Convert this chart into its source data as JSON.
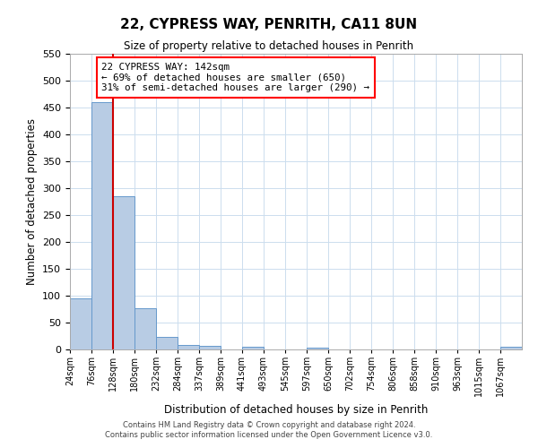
{
  "title": "22, CYPRESS WAY, PENRITH, CA11 8UN",
  "subtitle": "Size of property relative to detached houses in Penrith",
  "xlabel": "Distribution of detached houses by size in Penrith",
  "ylabel": "Number of detached properties",
  "footer_line1": "Contains HM Land Registry data © Crown copyright and database right 2024.",
  "footer_line2": "Contains public sector information licensed under the Open Government Licence v3.0.",
  "bin_labels": [
    "24sqm",
    "76sqm",
    "128sqm",
    "180sqm",
    "232sqm",
    "284sqm",
    "337sqm",
    "389sqm",
    "441sqm",
    "493sqm",
    "545sqm",
    "597sqm",
    "650sqm",
    "702sqm",
    "754sqm",
    "806sqm",
    "858sqm",
    "910sqm",
    "963sqm",
    "1015sqm",
    "1067sqm"
  ],
  "bar_heights": [
    95,
    460,
    285,
    77,
    23,
    9,
    6,
    0,
    5,
    0,
    0,
    3,
    0,
    0,
    0,
    0,
    0,
    0,
    0,
    0,
    5
  ],
  "bar_color": "#b8cce4",
  "bar_edge_color": "#6699cc",
  "ylim": [
    0,
    550
  ],
  "yticks": [
    0,
    50,
    100,
    150,
    200,
    250,
    300,
    350,
    400,
    450,
    500,
    550
  ],
  "property_line_x": 2,
  "red_line_color": "#cc0000",
  "annotation_title": "22 CYPRESS WAY: 142sqm",
  "annotation_line1": "← 69% of detached houses are smaller (650)",
  "annotation_line2": "31% of semi-detached houses are larger (290) →",
  "bg_color": "#ffffff",
  "grid_color": "#ccddee"
}
